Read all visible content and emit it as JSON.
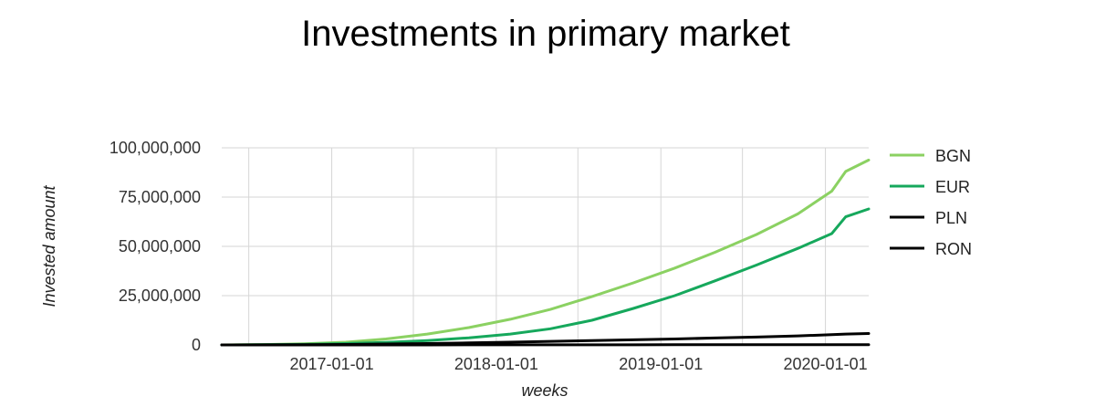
{
  "chart_data": {
    "type": "line",
    "title": "Investments in primary market",
    "xlabel": "weeks",
    "ylabel": "Invested amount",
    "x_ticks": [
      "2017-01-01",
      "2018-01-01",
      "2019-01-01",
      "2020-01-01"
    ],
    "y_ticks": [
      "0",
      "25,000,000",
      "50,000,000",
      "75,000,000",
      "100,000,000"
    ],
    "xlim": [
      "2016-05-02",
      "2020-04-06"
    ],
    "ylim": [
      0,
      100000000
    ],
    "grid": true,
    "legend_position": "right",
    "x": [
      "2016-05-02",
      "2016-08-01",
      "2016-11-01",
      "2017-02-01",
      "2017-05-01",
      "2017-08-01",
      "2017-11-01",
      "2018-02-01",
      "2018-05-01",
      "2018-08-01",
      "2018-11-01",
      "2019-02-01",
      "2019-05-01",
      "2019-08-01",
      "2019-11-01",
      "2020-01-15",
      "2020-02-15",
      "2020-04-06"
    ],
    "series": [
      {
        "name": "BGN",
        "color": "#8bd162",
        "values": [
          0,
          200000,
          600000,
          1400000,
          3000000,
          5500000,
          8800000,
          13000000,
          18000000,
          24500000,
          31500000,
          39000000,
          47000000,
          56000000,
          66500000,
          78000000,
          88000000,
          93800000
        ]
      },
      {
        "name": "EUR",
        "color": "#16a85c",
        "values": [
          0,
          100000,
          300000,
          700000,
          1300000,
          2200000,
          3600000,
          5500000,
          8200000,
          12500000,
          18500000,
          25000000,
          32500000,
          40500000,
          49000000,
          56500000,
          65000000,
          69000000
        ]
      },
      {
        "name": "PLN",
        "color": "#000000",
        "values": [
          0,
          30000,
          100000,
          250000,
          450000,
          700000,
          1000000,
          1400000,
          1800000,
          2200000,
          2600000,
          3000000,
          3500000,
          4000000,
          4600000,
          5200000,
          5500000,
          5800000
        ]
      },
      {
        "name": "RON",
        "color": "#000000",
        "values": [
          0,
          0,
          5000,
          10000,
          15000,
          20000,
          25000,
          30000,
          40000,
          50000,
          60000,
          70000,
          80000,
          90000,
          100000,
          110000,
          115000,
          120000
        ]
      }
    ]
  }
}
